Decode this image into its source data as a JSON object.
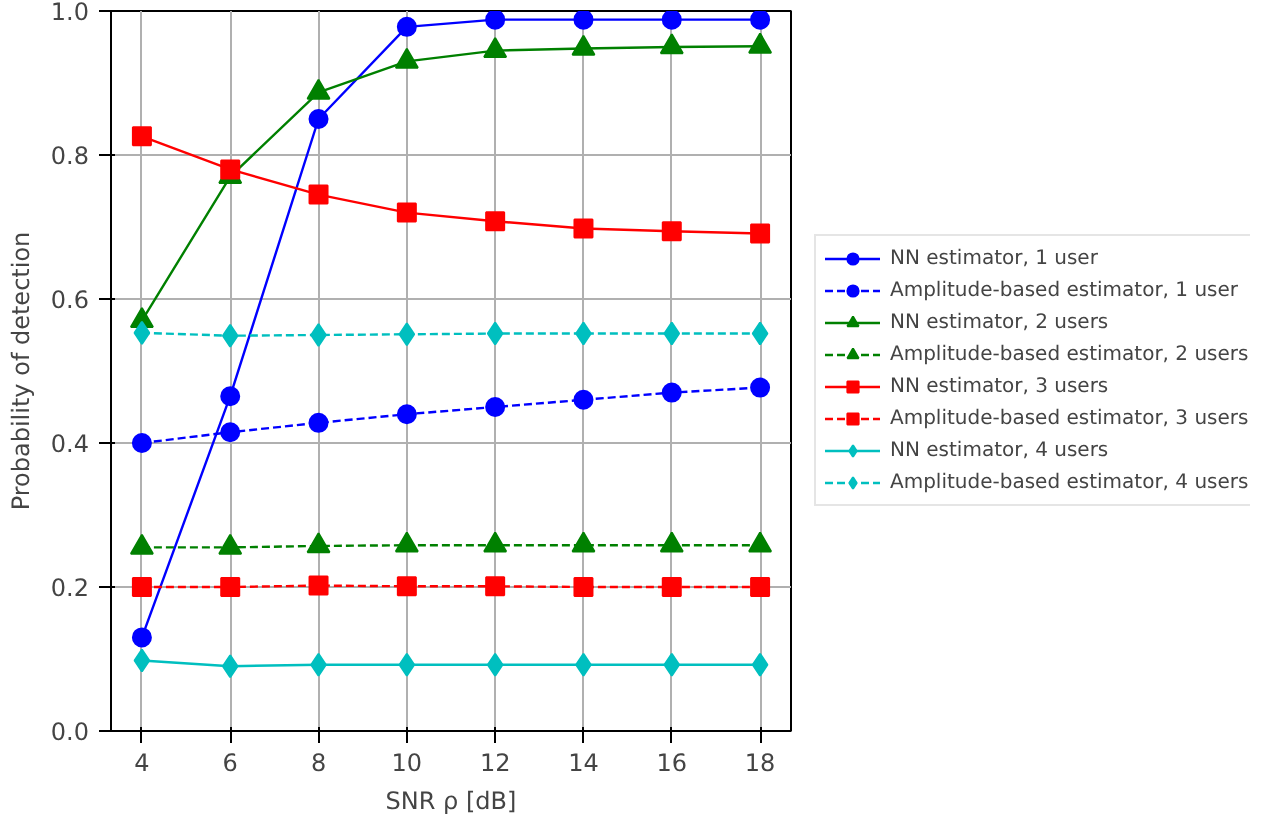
{
  "chart_data": {
    "type": "line",
    "xlabel": "SNR ρ [dB]",
    "ylabel": "Probability of detection",
    "x": [
      4,
      6,
      8,
      10,
      12,
      14,
      16,
      18
    ],
    "xlim": [
      3.3,
      18.7
    ],
    "xticks": [
      4,
      6,
      8,
      10,
      12,
      14,
      16,
      18
    ],
    "ylim": [
      0.0,
      1.0
    ],
    "yticks": [
      {
        "value": 0,
        "label": "0.0"
      },
      0.2,
      0.4,
      0.6,
      0.8,
      {
        "value": 1,
        "label": "1.0"
      }
    ],
    "grid": true,
    "legend": "right",
    "series": [
      {
        "name": "NN estimator, 1 user",
        "color": "#0000ff",
        "marker": "circle",
        "line_style": "solid",
        "values": [
          0.13,
          0.465,
          0.85,
          0.978,
          0.988,
          0.988,
          0.988,
          0.988
        ]
      },
      {
        "name": "Amplitude-based estimator, 1 user",
        "color": "#0000ff",
        "marker": "circle",
        "line_style": "dashed",
        "values": [
          0.4,
          0.415,
          0.428,
          0.44,
          0.45,
          0.46,
          0.47,
          0.477
        ]
      },
      {
        "name": "NN estimator, 2 users",
        "color": "#008000",
        "marker": "triangle",
        "line_style": "solid",
        "values": [
          0.57,
          0.77,
          0.887,
          0.93,
          0.945,
          0.948,
          0.95,
          0.951
        ]
      },
      {
        "name": "Amplitude-based estimator, 2 users",
        "color": "#008000",
        "marker": "triangle",
        "line_style": "dashed",
        "values": [
          0.255,
          0.255,
          0.257,
          0.258,
          0.258,
          0.258,
          0.258,
          0.258
        ]
      },
      {
        "name": "NN estimator, 3 users",
        "color": "#ff0000",
        "marker": "square",
        "line_style": "solid",
        "values": [
          0.826,
          0.78,
          0.745,
          0.72,
          0.708,
          0.698,
          0.694,
          0.691
        ]
      },
      {
        "name": "Amplitude-based estimator, 3 users",
        "color": "#ff0000",
        "marker": "square",
        "line_style": "dashed",
        "values": [
          0.2,
          0.2,
          0.202,
          0.201,
          0.201,
          0.2,
          0.2,
          0.2
        ]
      },
      {
        "name": "NN estimator, 4 users",
        "color": "#00bfbf",
        "marker": "diamond",
        "line_style": "solid",
        "values": [
          0.098,
          0.09,
          0.092,
          0.092,
          0.092,
          0.092,
          0.092,
          0.092
        ]
      },
      {
        "name": "Amplitude-based estimator, 4 users",
        "color": "#00bfbf",
        "marker": "diamond",
        "line_style": "dashed",
        "values": [
          0.553,
          0.549,
          0.55,
          0.551,
          0.552,
          0.552,
          0.552,
          0.552
        ]
      }
    ]
  }
}
